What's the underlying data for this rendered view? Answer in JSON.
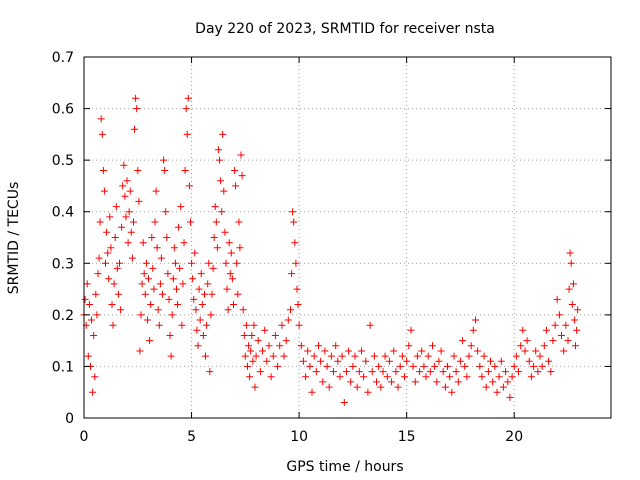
{
  "chart_data": {
    "type": "scatter",
    "title": "Day 220 of 2023, SRMTID for receiver nsta",
    "xlabel": "GPS time / hours",
    "ylabel": "SRMTID / TECUs",
    "xlim": [
      0,
      24.5
    ],
    "ylim": [
      0,
      0.7
    ],
    "xticks": [
      0,
      5,
      10,
      15,
      20
    ],
    "xtick_labels": [
      "0",
      "5",
      "10",
      "15",
      "20"
    ],
    "yticks": [
      0,
      0.1,
      0.2,
      0.3,
      0.4,
      0.5,
      0.6,
      0.7
    ],
    "ytick_labels": [
      "0",
      "0.1",
      "0.2",
      "0.3",
      "0.4",
      "0.5",
      "0.6",
      "0.7"
    ],
    "grid": true,
    "marker": "+",
    "series": [
      {
        "name": "SRMTID",
        "color": "#ff0000",
        "points": [
          [
            0.0,
            0.2
          ],
          [
            0.05,
            0.23
          ],
          [
            0.1,
            0.18
          ],
          [
            0.15,
            0.26
          ],
          [
            0.2,
            0.12
          ],
          [
            0.25,
            0.22
          ],
          [
            0.3,
            0.1
          ],
          [
            0.35,
            0.19
          ],
          [
            0.4,
            0.05
          ],
          [
            0.45,
            0.16
          ],
          [
            0.5,
            0.08
          ],
          [
            0.55,
            0.24
          ],
          [
            0.6,
            0.2
          ],
          [
            0.65,
            0.28
          ],
          [
            0.7,
            0.31
          ],
          [
            0.75,
            0.38
          ],
          [
            0.8,
            0.58
          ],
          [
            0.85,
            0.55
          ],
          [
            0.9,
            0.48
          ],
          [
            0.95,
            0.44
          ],
          [
            1.0,
            0.3
          ],
          [
            1.05,
            0.36
          ],
          [
            1.1,
            0.32
          ],
          [
            1.15,
            0.27
          ],
          [
            1.2,
            0.39
          ],
          [
            1.25,
            0.33
          ],
          [
            1.3,
            0.22
          ],
          [
            1.35,
            0.18
          ],
          [
            1.4,
            0.26
          ],
          [
            1.45,
            0.35
          ],
          [
            1.5,
            0.41
          ],
          [
            1.55,
            0.29
          ],
          [
            1.6,
            0.24
          ],
          [
            1.65,
            0.3
          ],
          [
            1.7,
            0.21
          ],
          [
            1.75,
            0.37
          ],
          [
            1.8,
            0.45
          ],
          [
            1.85,
            0.49
          ],
          [
            1.9,
            0.43
          ],
          [
            1.95,
            0.39
          ],
          [
            2.0,
            0.46
          ],
          [
            2.05,
            0.34
          ],
          [
            2.1,
            0.4
          ],
          [
            2.15,
            0.44
          ],
          [
            2.2,
            0.36
          ],
          [
            2.25,
            0.31
          ],
          [
            2.3,
            0.38
          ],
          [
            2.35,
            0.56
          ],
          [
            2.4,
            0.62
          ],
          [
            2.45,
            0.6
          ],
          [
            2.5,
            0.48
          ],
          [
            2.55,
            0.42
          ],
          [
            2.6,
            0.13
          ],
          [
            2.65,
            0.2
          ],
          [
            2.7,
            0.26
          ],
          [
            2.75,
            0.34
          ],
          [
            2.8,
            0.28
          ],
          [
            2.85,
            0.24
          ],
          [
            2.9,
            0.3
          ],
          [
            2.95,
            0.19
          ],
          [
            3.0,
            0.27
          ],
          [
            3.05,
            0.15
          ],
          [
            3.1,
            0.22
          ],
          [
            3.15,
            0.35
          ],
          [
            3.2,
            0.29
          ],
          [
            3.25,
            0.25
          ],
          [
            3.3,
            0.38
          ],
          [
            3.35,
            0.44
          ],
          [
            3.4,
            0.33
          ],
          [
            3.45,
            0.21
          ],
          [
            3.5,
            0.18
          ],
          [
            3.55,
            0.26
          ],
          [
            3.6,
            0.31
          ],
          [
            3.65,
            0.24
          ],
          [
            3.7,
            0.5
          ],
          [
            3.75,
            0.48
          ],
          [
            3.8,
            0.4
          ],
          [
            3.85,
            0.35
          ],
          [
            3.9,
            0.28
          ],
          [
            3.95,
            0.23
          ],
          [
            4.0,
            0.16
          ],
          [
            4.05,
            0.12
          ],
          [
            4.1,
            0.2
          ],
          [
            4.15,
            0.27
          ],
          [
            4.2,
            0.33
          ],
          [
            4.25,
            0.3
          ],
          [
            4.3,
            0.25
          ],
          [
            4.35,
            0.22
          ],
          [
            4.4,
            0.37
          ],
          [
            4.45,
            0.29
          ],
          [
            4.5,
            0.41
          ],
          [
            4.55,
            0.18
          ],
          [
            4.6,
            0.26
          ],
          [
            4.65,
            0.34
          ],
          [
            4.7,
            0.48
          ],
          [
            4.75,
            0.6
          ],
          [
            4.8,
            0.55
          ],
          [
            4.85,
            0.62
          ],
          [
            4.9,
            0.45
          ],
          [
            4.95,
            0.38
          ],
          [
            5.0,
            0.3
          ],
          [
            5.05,
            0.27
          ],
          [
            5.1,
            0.23
          ],
          [
            5.15,
            0.32
          ],
          [
            5.2,
            0.21
          ],
          [
            5.25,
            0.17
          ],
          [
            5.3,
            0.14
          ],
          [
            5.35,
            0.25
          ],
          [
            5.4,
            0.19
          ],
          [
            5.45,
            0.28
          ],
          [
            5.5,
            0.22
          ],
          [
            5.55,
            0.16
          ],
          [
            5.6,
            0.24
          ],
          [
            5.65,
            0.12
          ],
          [
            5.7,
            0.18
          ],
          [
            5.75,
            0.26
          ],
          [
            5.8,
            0.3
          ],
          [
            5.85,
            0.09
          ],
          [
            5.9,
            0.2
          ],
          [
            5.95,
            0.24
          ],
          [
            6.0,
            0.29
          ],
          [
            6.05,
            0.35
          ],
          [
            6.1,
            0.41
          ],
          [
            6.15,
            0.38
          ],
          [
            6.2,
            0.33
          ],
          [
            6.25,
            0.52
          ],
          [
            6.3,
            0.5
          ],
          [
            6.35,
            0.46
          ],
          [
            6.4,
            0.4
          ],
          [
            6.45,
            0.55
          ],
          [
            6.5,
            0.44
          ],
          [
            6.55,
            0.36
          ],
          [
            6.6,
            0.3
          ],
          [
            6.65,
            0.25
          ],
          [
            6.7,
            0.21
          ],
          [
            6.75,
            0.34
          ],
          [
            6.8,
            0.28
          ],
          [
            6.85,
            0.32
          ],
          [
            6.9,
            0.27
          ],
          [
            6.95,
            0.22
          ],
          [
            7.0,
            0.48
          ],
          [
            7.05,
            0.45
          ],
          [
            7.1,
            0.3
          ],
          [
            7.15,
            0.24
          ],
          [
            7.2,
            0.38
          ],
          [
            7.25,
            0.33
          ],
          [
            7.3,
            0.51
          ],
          [
            7.35,
            0.47
          ],
          [
            7.4,
            0.21
          ],
          [
            7.45,
            0.16
          ],
          [
            7.5,
            0.12
          ],
          [
            7.55,
            0.18
          ],
          [
            7.6,
            0.1
          ],
          [
            7.65,
            0.14
          ],
          [
            7.7,
            0.08
          ],
          [
            7.75,
            0.13
          ],
          [
            7.8,
            0.16
          ],
          [
            7.85,
            0.11
          ],
          [
            7.9,
            0.18
          ],
          [
            7.95,
            0.06
          ],
          [
            8.0,
            0.12
          ],
          [
            8.1,
            0.15
          ],
          [
            8.2,
            0.09
          ],
          [
            8.3,
            0.13
          ],
          [
            8.4,
            0.17
          ],
          [
            8.5,
            0.11
          ],
          [
            8.6,
            0.14
          ],
          [
            8.7,
            0.08
          ],
          [
            8.8,
            0.12
          ],
          [
            8.9,
            0.16
          ],
          [
            9.0,
            0.1
          ],
          [
            9.1,
            0.14
          ],
          [
            9.2,
            0.18
          ],
          [
            9.3,
            0.12
          ],
          [
            9.4,
            0.15
          ],
          [
            9.5,
            0.19
          ],
          [
            9.6,
            0.21
          ],
          [
            9.65,
            0.28
          ],
          [
            9.7,
            0.4
          ],
          [
            9.75,
            0.38
          ],
          [
            9.8,
            0.34
          ],
          [
            9.85,
            0.3
          ],
          [
            9.9,
            0.25
          ],
          [
            9.95,
            0.22
          ],
          [
            10.0,
            0.18
          ],
          [
            10.1,
            0.14
          ],
          [
            10.2,
            0.11
          ],
          [
            10.3,
            0.08
          ],
          [
            10.4,
            0.13
          ],
          [
            10.5,
            0.1
          ],
          [
            10.6,
            0.05
          ],
          [
            10.7,
            0.12
          ],
          [
            10.8,
            0.09
          ],
          [
            10.9,
            0.14
          ],
          [
            11.0,
            0.11
          ],
          [
            11.1,
            0.07
          ],
          [
            11.2,
            0.13
          ],
          [
            11.3,
            0.1
          ],
          [
            11.4,
            0.06
          ],
          [
            11.5,
            0.12
          ],
          [
            11.6,
            0.09
          ],
          [
            11.7,
            0.14
          ],
          [
            11.8,
            0.11
          ],
          [
            11.9,
            0.08
          ],
          [
            12.0,
            0.12
          ],
          [
            12.1,
            0.03
          ],
          [
            12.2,
            0.09
          ],
          [
            12.3,
            0.13
          ],
          [
            12.4,
            0.07
          ],
          [
            12.5,
            0.1
          ],
          [
            12.6,
            0.12
          ],
          [
            12.7,
            0.06
          ],
          [
            12.8,
            0.09
          ],
          [
            12.9,
            0.13
          ],
          [
            13.0,
            0.08
          ],
          [
            13.1,
            0.11
          ],
          [
            13.2,
            0.05
          ],
          [
            13.3,
            0.18
          ],
          [
            13.4,
            0.09
          ],
          [
            13.5,
            0.12
          ],
          [
            13.6,
            0.07
          ],
          [
            13.7,
            0.1
          ],
          [
            13.8,
            0.06
          ],
          [
            13.9,
            0.09
          ],
          [
            14.0,
            0.12
          ],
          [
            14.1,
            0.08
          ],
          [
            14.2,
            0.11
          ],
          [
            14.3,
            0.07
          ],
          [
            14.4,
            0.13
          ],
          [
            14.5,
            0.09
          ],
          [
            14.6,
            0.06
          ],
          [
            14.7,
            0.1
          ],
          [
            14.8,
            0.12
          ],
          [
            14.9,
            0.08
          ],
          [
            15.0,
            0.11
          ],
          [
            15.1,
            0.14
          ],
          [
            15.2,
            0.17
          ],
          [
            15.3,
            0.1
          ],
          [
            15.4,
            0.07
          ],
          [
            15.5,
            0.12
          ],
          [
            15.6,
            0.09
          ],
          [
            15.7,
            0.13
          ],
          [
            15.8,
            0.1
          ],
          [
            15.9,
            0.08
          ],
          [
            16.0,
            0.12
          ],
          [
            16.1,
            0.09
          ],
          [
            16.2,
            0.14
          ],
          [
            16.3,
            0.1
          ],
          [
            16.4,
            0.07
          ],
          [
            16.5,
            0.11
          ],
          [
            16.6,
            0.13
          ],
          [
            16.7,
            0.09
          ],
          [
            16.8,
            0.06
          ],
          [
            16.9,
            0.1
          ],
          [
            17.0,
            0.08
          ],
          [
            17.1,
            0.05
          ],
          [
            17.2,
            0.12
          ],
          [
            17.3,
            0.09
          ],
          [
            17.4,
            0.07
          ],
          [
            17.5,
            0.11
          ],
          [
            17.6,
            0.15
          ],
          [
            17.7,
            0.1
          ],
          [
            17.8,
            0.08
          ],
          [
            17.9,
            0.12
          ],
          [
            18.0,
            0.14
          ],
          [
            18.1,
            0.17
          ],
          [
            18.2,
            0.19
          ],
          [
            18.3,
            0.13
          ],
          [
            18.4,
            0.1
          ],
          [
            18.5,
            0.08
          ],
          [
            18.6,
            0.12
          ],
          [
            18.7,
            0.06
          ],
          [
            18.8,
            0.09
          ],
          [
            18.9,
            0.11
          ],
          [
            19.0,
            0.07
          ],
          [
            19.1,
            0.1
          ],
          [
            19.2,
            0.05
          ],
          [
            19.3,
            0.08
          ],
          [
            19.4,
            0.11
          ],
          [
            19.5,
            0.06
          ],
          [
            19.6,
            0.09
          ],
          [
            19.7,
            0.07
          ],
          [
            19.8,
            0.04
          ],
          [
            19.9,
            0.08
          ],
          [
            20.0,
            0.1
          ],
          [
            20.1,
            0.12
          ],
          [
            20.2,
            0.09
          ],
          [
            20.3,
            0.14
          ],
          [
            20.4,
            0.17
          ],
          [
            20.5,
            0.13
          ],
          [
            20.6,
            0.15
          ],
          [
            20.7,
            0.11
          ],
          [
            20.8,
            0.08
          ],
          [
            20.9,
            0.1
          ],
          [
            21.0,
            0.13
          ],
          [
            21.1,
            0.09
          ],
          [
            21.2,
            0.12
          ],
          [
            21.3,
            0.1
          ],
          [
            21.4,
            0.14
          ],
          [
            21.5,
            0.17
          ],
          [
            21.6,
            0.11
          ],
          [
            21.7,
            0.09
          ],
          [
            21.8,
            0.15
          ],
          [
            21.9,
            0.18
          ],
          [
            22.0,
            0.23
          ],
          [
            22.1,
            0.2
          ],
          [
            22.2,
            0.16
          ],
          [
            22.3,
            0.13
          ],
          [
            22.4,
            0.18
          ],
          [
            22.5,
            0.15
          ],
          [
            22.55,
            0.25
          ],
          [
            22.6,
            0.32
          ],
          [
            22.65,
            0.3
          ],
          [
            22.7,
            0.22
          ],
          [
            22.75,
            0.26
          ],
          [
            22.8,
            0.19
          ],
          [
            22.85,
            0.14
          ],
          [
            22.9,
            0.17
          ],
          [
            22.95,
            0.21
          ]
        ]
      }
    ]
  }
}
